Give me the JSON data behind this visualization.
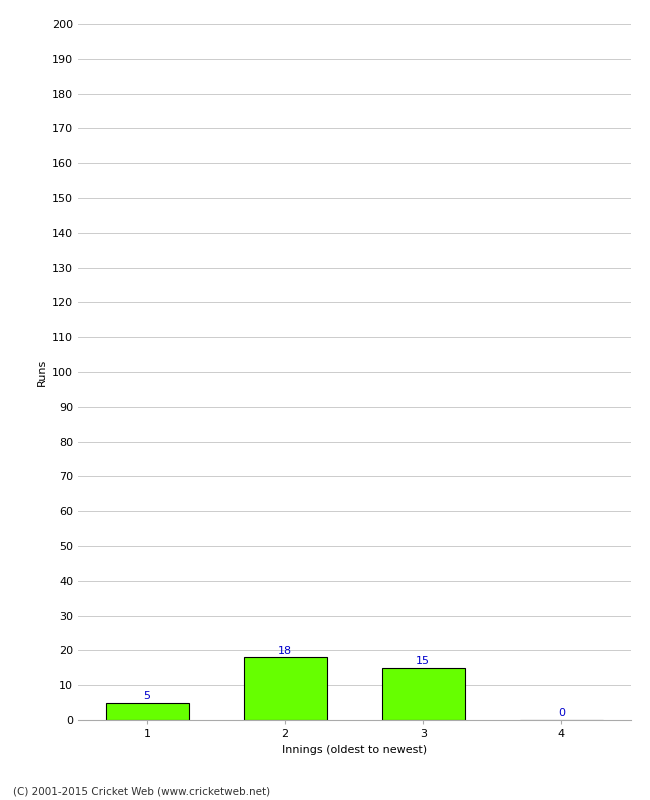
{
  "categories": [
    1,
    2,
    3,
    4
  ],
  "values": [
    5,
    18,
    15,
    0
  ],
  "bar_color": "#66ff00",
  "bar_edge_color": "#000000",
  "label_color": "#0000cc",
  "xlabel": "Innings (oldest to newest)",
  "ylabel": "Runs",
  "ylim": [
    0,
    200
  ],
  "ytick_step": 10,
  "footer": "(C) 2001-2015 Cricket Web (www.cricketweb.net)",
  "bg_color": "#ffffff",
  "grid_color": "#cccccc"
}
